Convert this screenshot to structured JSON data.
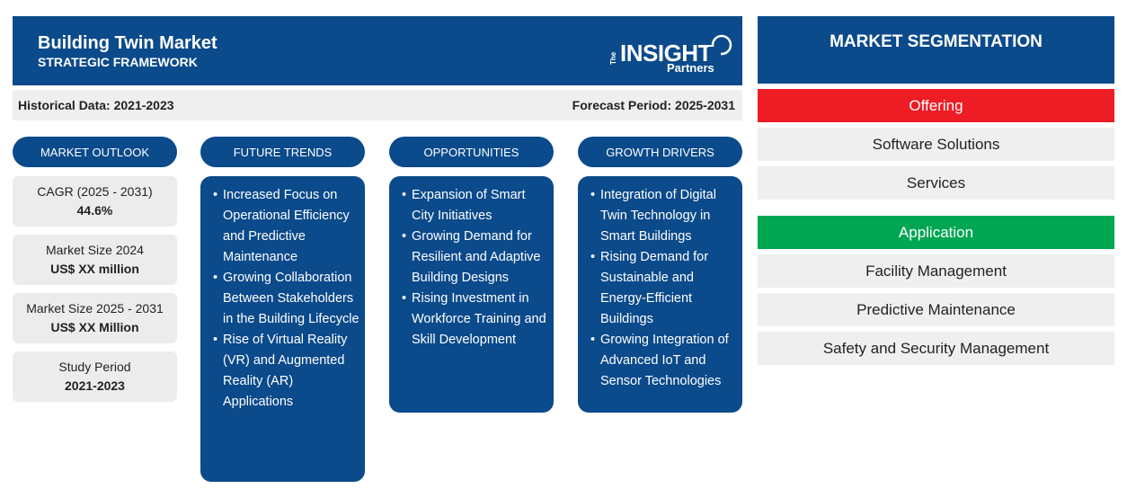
{
  "header": {
    "title": "Building Twin Market",
    "subtitle": "STRATEGIC FRAMEWORK",
    "logo": {
      "the": "The",
      "insight": "INSIGHT",
      "partners": "Partners"
    }
  },
  "periods": {
    "historical": "Historical Data: 2021-2023",
    "forecast": "Forecast Period: 2025-2031"
  },
  "columns": {
    "outlook": "MARKET OUTLOOK",
    "trends": "FUTURE TRENDS",
    "opportunities": "OPPORTUNITIES",
    "drivers": "GROWTH DRIVERS"
  },
  "outlook": [
    {
      "label": "CAGR (2025 - 2031)",
      "value": "44.6%"
    },
    {
      "label": "Market Size 2024",
      "value": "US$ XX million"
    },
    {
      "label": "Market Size 2025 - 2031",
      "value": "US$ XX Million"
    },
    {
      "label": "Study Period",
      "value": "2021-2023"
    }
  ],
  "trends": [
    "Increased Focus on Operational Efficiency and Predictive Maintenance",
    "Growing Collaboration Between Stakeholders in the Building Lifecycle",
    "Rise of Virtual Reality (VR) and Augmented Reality (AR) Applications"
  ],
  "opportunities": [
    "Expansion of Smart City Initiatives",
    "Growing Demand for Resilient and Adaptive Building Designs",
    "Rising Investment in Workforce Training and Skill Development"
  ],
  "drivers": [
    "Integration of Digital Twin Technology in Smart Buildings",
    "Rising Demand for Sustainable and Energy-Efficient Buildings",
    "Growing Integration of Advanced IoT and Sensor Technologies"
  ],
  "segmentation": {
    "title": "MARKET SEGMENTATION",
    "offering": {
      "label": "Offering",
      "color": "#ee1c25",
      "items": [
        "Software Solutions",
        "Services"
      ]
    },
    "application": {
      "label": "Application",
      "color": "#00a651",
      "items": [
        "Facility Management",
        "Predictive Maintenance",
        "Safety and Security Management"
      ]
    }
  },
  "colors": {
    "primary": "#0b4a8b",
    "panel": "#efefef"
  }
}
